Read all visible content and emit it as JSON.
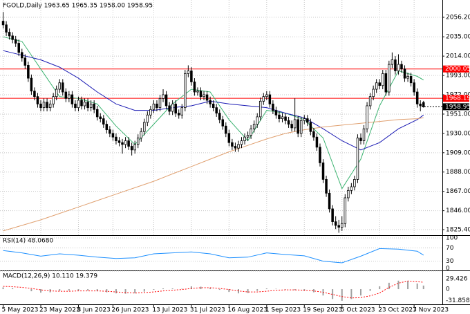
{
  "chart_data": [
    {
      "type": "candlestick",
      "title": "FGOLD,Daily  1963.65 1965.35 1958.00 1958.95",
      "ohlc": [
        [
          2052,
          2062,
          2044,
          2048
        ],
        [
          2048,
          2052,
          2036,
          2040
        ],
        [
          2040,
          2044,
          2032,
          2036
        ],
        [
          2036,
          2040,
          2028,
          2032
        ],
        [
          2032,
          2036,
          2024,
          2028
        ],
        [
          2028,
          2032,
          2014,
          2018
        ],
        [
          2018,
          2022,
          2008,
          2012
        ],
        [
          2012,
          2016,
          2000,
          2004
        ],
        [
          2004,
          2008,
          1986,
          1990
        ],
        [
          1990,
          1994,
          1972,
          1976
        ],
        [
          1976,
          1980,
          1966,
          1970
        ],
        [
          1970,
          1974,
          1958,
          1962
        ],
        [
          1962,
          1966,
          1954,
          1958
        ],
        [
          1958,
          1968,
          1954,
          1964
        ],
        [
          1964,
          1968,
          1954,
          1958
        ],
        [
          1958,
          1966,
          1954,
          1962
        ],
        [
          1962,
          1974,
          1958,
          1970
        ],
        [
          1970,
          1982,
          1966,
          1978
        ],
        [
          1978,
          1989,
          1974,
          1985
        ],
        [
          1985,
          1989,
          1971,
          1975
        ],
        [
          1975,
          1979,
          1964,
          1968
        ],
        [
          1968,
          1976,
          1964,
          1972
        ],
        [
          1972,
          1976,
          1958,
          1962
        ],
        [
          1962,
          1966,
          1954,
          1958
        ],
        [
          1958,
          1970,
          1954,
          1966
        ],
        [
          1966,
          1970,
          1956,
          1960
        ],
        [
          1960,
          1968,
          1956,
          1964
        ],
        [
          1964,
          1968,
          1954,
          1958
        ],
        [
          1958,
          1966,
          1954,
          1962
        ],
        [
          1962,
          1966,
          1952,
          1956
        ],
        [
          1956,
          1960,
          1944,
          1948
        ],
        [
          1948,
          1952,
          1942,
          1946
        ],
        [
          1946,
          1950,
          1936,
          1940
        ],
        [
          1940,
          1944,
          1930,
          1934
        ],
        [
          1934,
          1938,
          1926,
          1930
        ],
        [
          1930,
          1934,
          1922,
          1926
        ],
        [
          1926,
          1930,
          1918,
          1922
        ],
        [
          1922,
          1926,
          1916,
          1920
        ],
        [
          1920,
          1924,
          1908,
          1918
        ],
        [
          1918,
          1926,
          1914,
          1922
        ],
        [
          1922,
          1926,
          1912,
          1916
        ],
        [
          1916,
          1920,
          1906,
          1912
        ],
        [
          1912,
          1922,
          1908,
          1918
        ],
        [
          1918,
          1929,
          1914,
          1925
        ],
        [
          1925,
          1936,
          1921,
          1932
        ],
        [
          1932,
          1946,
          1928,
          1942
        ],
        [
          1942,
          1954,
          1938,
          1950
        ],
        [
          1950,
          1960,
          1946,
          1956
        ],
        [
          1956,
          1966,
          1952,
          1962
        ],
        [
          1962,
          1966,
          1954,
          1958
        ],
        [
          1958,
          1972,
          1954,
          1968
        ],
        [
          1968,
          1978,
          1964,
          1972
        ],
        [
          1972,
          1976,
          1956,
          1960
        ],
        [
          1960,
          1964,
          1950,
          1954
        ],
        [
          1954,
          1966,
          1950,
          1962
        ],
        [
          1962,
          1966,
          1948,
          1952
        ],
        [
          1952,
          1956,
          1946,
          1950
        ],
        [
          1950,
          1962,
          1946,
          1958
        ],
        [
          1958,
          1999,
          1954,
          1995
        ],
        [
          1995,
          2004,
          1991,
          1998
        ],
        [
          1998,
          2002,
          1982,
          1986
        ],
        [
          1986,
          1990,
          1971,
          1975
        ],
        [
          1975,
          1980,
          1971,
          1976
        ],
        [
          1976,
          1980,
          1966,
          1970
        ],
        [
          1970,
          1976,
          1966,
          1972
        ],
        [
          1972,
          1976,
          1962,
          1966
        ],
        [
          1966,
          1970,
          1958,
          1962
        ],
        [
          1962,
          1966,
          1954,
          1958
        ],
        [
          1958,
          1962,
          1948,
          1952
        ],
        [
          1952,
          1956,
          1941,
          1945
        ],
        [
          1945,
          1949,
          1934,
          1938
        ],
        [
          1938,
          1942,
          1926,
          1930
        ],
        [
          1930,
          1934,
          1916,
          1920
        ],
        [
          1920,
          1924,
          1912,
          1916
        ],
        [
          1916,
          1920,
          1910,
          1914
        ],
        [
          1914,
          1922,
          1910,
          1918
        ],
        [
          1918,
          1926,
          1914,
          1922
        ],
        [
          1922,
          1930,
          1918,
          1926
        ],
        [
          1926,
          1932,
          1922,
          1928
        ],
        [
          1928,
          1939,
          1924,
          1935
        ],
        [
          1935,
          1944,
          1931,
          1940
        ],
        [
          1940,
          1952,
          1936,
          1948
        ],
        [
          1948,
          1969,
          1944,
          1965
        ],
        [
          1965,
          1974,
          1961,
          1970
        ],
        [
          1970,
          1976,
          1966,
          1972
        ],
        [
          1972,
          1976,
          1958,
          1962
        ],
        [
          1962,
          1966,
          1951,
          1955
        ],
        [
          1955,
          1959,
          1946,
          1950
        ],
        [
          1950,
          1954,
          1942,
          1946
        ],
        [
          1946,
          1952,
          1942,
          1948
        ],
        [
          1948,
          1952,
          1940,
          1944
        ],
        [
          1944,
          1948,
          1936,
          1940
        ],
        [
          1940,
          1944,
          1932,
          1936
        ],
        [
          1936,
          1968,
          1932,
          1945
        ],
        [
          1945,
          1949,
          1926,
          1930
        ],
        [
          1930,
          1948,
          1926,
          1944
        ],
        [
          1944,
          1950,
          1940,
          1946
        ],
        [
          1946,
          1950,
          1938,
          1942
        ],
        [
          1942,
          1946,
          1928,
          1932
        ],
        [
          1932,
          1936,
          1922,
          1926
        ],
        [
          1926,
          1930,
          1911,
          1915
        ],
        [
          1915,
          1919,
          1894,
          1898
        ],
        [
          1898,
          1902,
          1876,
          1880
        ],
        [
          1880,
          1884,
          1861,
          1865
        ],
        [
          1865,
          1869,
          1844,
          1848
        ],
        [
          1848,
          1852,
          1830,
          1834
        ],
        [
          1834,
          1840,
          1826,
          1830
        ],
        [
          1830,
          1836,
          1822,
          1828
        ],
        [
          1828,
          1840,
          1824,
          1832
        ],
        [
          1832,
          1864,
          1828,
          1860
        ],
        [
          1860,
          1872,
          1856,
          1868
        ],
        [
          1868,
          1876,
          1864,
          1872
        ],
        [
          1872,
          1884,
          1868,
          1880
        ],
        [
          1880,
          1929,
          1876,
          1925
        ],
        [
          1925,
          1930,
          1918,
          1922
        ],
        [
          1922,
          1939,
          1918,
          1935
        ],
        [
          1935,
          1964,
          1931,
          1960
        ],
        [
          1960,
          1974,
          1956,
          1970
        ],
        [
          1970,
          1982,
          1966,
          1978
        ],
        [
          1978,
          1989,
          1974,
          1985
        ],
        [
          1985,
          1989,
          1978,
          1982
        ],
        [
          1982,
          1999,
          1978,
          1995
        ],
        [
          1995,
          1999,
          1971,
          1975
        ],
        [
          1975,
          2009,
          1971,
          2005
        ],
        [
          2005,
          2018,
          2001,
          2010
        ],
        [
          2010,
          2014,
          1994,
          1998
        ],
        [
          1998,
          2016,
          1994,
          2005
        ],
        [
          2005,
          2009,
          1996,
          2000
        ],
        [
          2000,
          2004,
          1986,
          1990
        ],
        [
          1990,
          1996,
          1986,
          1992
        ],
        [
          1992,
          1996,
          1981,
          1985
        ],
        [
          1985,
          1989,
          1971,
          1975
        ],
        [
          1975,
          1979,
          1958,
          1962
        ],
        [
          1962,
          1966,
          1954,
          1960
        ],
        [
          1963.65,
          1965.35,
          1958.0,
          1958.95
        ]
      ],
      "xlim": [
        -1,
        140
      ],
      "xticks": [
        {
          "value": 0,
          "label": "5 May 2023"
        },
        {
          "value": 12,
          "label": "23 May 2023"
        },
        {
          "value": 24,
          "label": "8 Jun 2023"
        },
        {
          "value": 35,
          "label": "26 Jun 2023"
        },
        {
          "value": 48,
          "label": "13 Jul 2023"
        },
        {
          "value": 60,
          "label": "31 Jul 2023"
        },
        {
          "value": 72,
          "label": "16 Aug 2023"
        },
        {
          "value": 84,
          "label": "1 Sep 2023"
        },
        {
          "value": 96,
          "label": "19 Sep 2023"
        },
        {
          "value": 108,
          "label": "5 Oct 2023"
        },
        {
          "value": 120,
          "label": "23 Oct 2023"
        },
        {
          "value": 131,
          "label": "7 Nov 2023"
        }
      ],
      "ylim": [
        1819.4,
        2075
      ],
      "yticks": [
        {
          "value": 2056.2,
          "label": "2056.20"
        },
        {
          "value": 2035,
          "label": "2035.00"
        },
        {
          "value": 2014,
          "label": "2014.00"
        },
        {
          "value": 1993,
          "label": "1993.00"
        },
        {
          "value": 1972,
          "label": "1972.00"
        },
        {
          "value": 1951,
          "label": "1951.00"
        },
        {
          "value": 1930,
          "label": "1930.00"
        },
        {
          "value": 1909,
          "label": "1909.00"
        },
        {
          "value": 1888,
          "label": "1888.00"
        },
        {
          "value": 1867,
          "label": "1867.00"
        },
        {
          "value": 1846,
          "label": "1846.00"
        },
        {
          "value": 1825.4,
          "label": "1825.40"
        }
      ],
      "levels": [
        2000.05,
        1968.19
      ],
      "level_color": "#ff0000",
      "last_price": 1958.95,
      "ma": [
        {
          "color": "#3cb371",
          "x": [
            0,
            6,
            12,
            18,
            24,
            30,
            36,
            42,
            48,
            54,
            60,
            66,
            72,
            78,
            84,
            90,
            96,
            102,
            108,
            114,
            120,
            126,
            132,
            134
          ],
          "values": [
            2035,
            2030,
            2000,
            1970,
            1968,
            1962,
            1938,
            1918,
            1940,
            1962,
            1978,
            1975,
            1945,
            1922,
            1955,
            1952,
            1945,
            1925,
            1870,
            1902,
            1960,
            1998,
            1992,
            1988
          ]
        },
        {
          "color": "#1c1cb4",
          "x": [
            0,
            6,
            12,
            18,
            24,
            30,
            36,
            42,
            48,
            54,
            60,
            66,
            72,
            78,
            84,
            90,
            96,
            102,
            108,
            114,
            120,
            126,
            132,
            134
          ],
          "values": [
            2020,
            2015,
            2010,
            2002,
            1990,
            1975,
            1962,
            1955,
            1955,
            1958,
            1960,
            1965,
            1962,
            1960,
            1958,
            1952,
            1947,
            1935,
            1922,
            1912,
            1920,
            1935,
            1945,
            1950
          ]
        },
        {
          "color": "#e0a070",
          "x": [
            0,
            6,
            12,
            18,
            24,
            30,
            36,
            42,
            48,
            54,
            60,
            66,
            72,
            78,
            84,
            90,
            96,
            102,
            108,
            114,
            120,
            126,
            132,
            134
          ],
          "values": [
            1824,
            1830,
            1836,
            1843,
            1850,
            1857,
            1864,
            1871,
            1878,
            1886,
            1894,
            1902,
            1910,
            1917,
            1924,
            1930,
            1934,
            1937,
            1939,
            1941,
            1943,
            1945,
            1946,
            1947
          ]
        }
      ],
      "grid": true
    },
    {
      "type": "rsi",
      "label": "RSI(14) 48.0680",
      "color": "#1e90ff",
      "x": [
        0,
        6,
        12,
        18,
        24,
        30,
        36,
        42,
        48,
        54,
        60,
        66,
        72,
        78,
        84,
        90,
        96,
        102,
        108,
        114,
        120,
        126,
        132,
        134
      ],
      "values": [
        62,
        55,
        45,
        52,
        48,
        42,
        38,
        40,
        52,
        55,
        58,
        52,
        40,
        42,
        55,
        50,
        46,
        30,
        25,
        45,
        68,
        66,
        60,
        48.068
      ],
      "ylim": [
        0,
        100
      ],
      "yticks": [
        100,
        70,
        30,
        0
      ]
    },
    {
      "type": "macd",
      "label": "MACD(12,26,9) 10.110 19.379",
      "hist_color": "#a0a0a0",
      "signal_color": "#ff0000",
      "x": [
        0,
        3,
        6,
        9,
        12,
        15,
        18,
        21,
        24,
        27,
        30,
        33,
        36,
        39,
        42,
        45,
        48,
        51,
        54,
        57,
        60,
        63,
        66,
        69,
        72,
        75,
        78,
        81,
        84,
        87,
        90,
        93,
        96,
        99,
        102,
        105,
        108,
        111,
        114,
        117,
        120,
        123,
        126,
        129,
        132,
        134
      ],
      "values": [
        5,
        3,
        0,
        -6,
        -10,
        -9,
        -5,
        -4,
        -4,
        -4,
        -6,
        -9,
        -12,
        -13,
        -12,
        -7,
        -2,
        2,
        2,
        1,
        8,
        7,
        3,
        -2,
        -8,
        -12,
        -11,
        -5,
        2,
        1,
        -1,
        -3,
        -5,
        -9,
        -18,
        -28,
        -33,
        -28,
        -18,
        -5,
        8,
        18,
        24,
        22,
        16,
        10.11
      ],
      "signal": [
        8,
        7,
        5,
        2,
        -2,
        -5,
        -6,
        -6,
        -5,
        -5,
        -5,
        -6,
        -8,
        -10,
        -11,
        -10,
        -8,
        -5,
        -3,
        -1,
        2,
        4,
        4,
        2,
        -1,
        -5,
        -8,
        -8,
        -6,
        -3,
        -2,
        -2,
        -3,
        -5,
        -9,
        -15,
        -21,
        -25,
        -24,
        -19,
        -11,
        5,
        17,
        23,
        21,
        19.379
      ],
      "ylim": [
        -43,
        51
      ],
      "yticks": [
        29.426,
        0,
        -31.858
      ]
    }
  ]
}
